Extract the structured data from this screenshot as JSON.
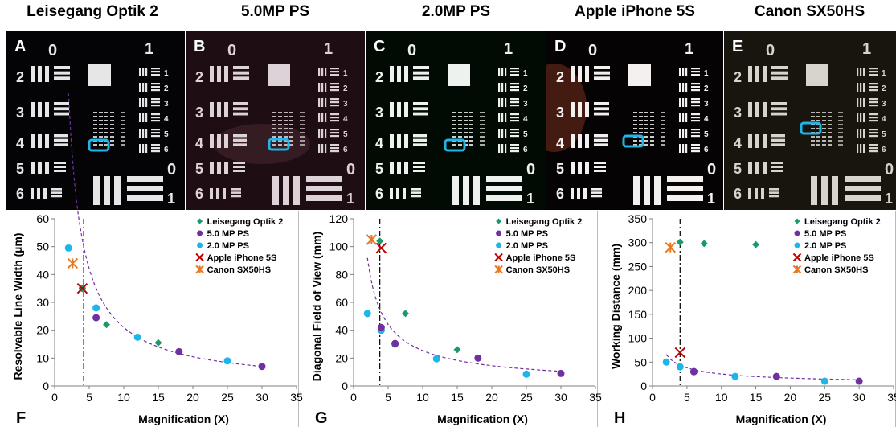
{
  "titles": [
    "Leisegang Optik 2",
    "5.0MP PS",
    "2.0MP PS",
    "Apple iPhone 5S",
    "Canon SX50HS"
  ],
  "photos": [
    {
      "letter": "A",
      "bg": "#040406",
      "bar": "#e6e6e6"
    },
    {
      "letter": "B",
      "bg": "#1e0e14",
      "bar": "#dcd2d8"
    },
    {
      "letter": "C",
      "bg": "#020a04",
      "bar": "#eef2ee"
    },
    {
      "letter": "D",
      "bg": "#060304",
      "bar": "#f4f0f0"
    },
    {
      "letter": "E",
      "bg": "#18140e",
      "bar": "#d8d4cc"
    }
  ],
  "target_labels": {
    "group0": "0",
    "group1": "1",
    "group0b": "0",
    "group1b": "1",
    "left": [
      "2",
      "3",
      "4",
      "5",
      "6"
    ],
    "right": [
      "1",
      "2",
      "3",
      "4",
      "5",
      "6"
    ]
  },
  "colors": {
    "Leisegang Optik 2": "#1a9a66",
    "5.0 MP PS": "#7030a0",
    "2.0 MP PS": "#1fb4ea",
    "Apple iPhone 5S": "#c00000",
    "Canon SX50HS": "#e87722",
    "highlight": "#1fb4ea",
    "fit": "#7030a0"
  },
  "chart_data": [
    {
      "panel": "F",
      "type": "scatter",
      "xlabel": "Magnification (X)",
      "ylabel": "Resolvable Line Width (µm)",
      "xlim": [
        0,
        35
      ],
      "ylim": [
        0,
        60
      ],
      "xticks": [
        0,
        5,
        10,
        15,
        20,
        25,
        30,
        35
      ],
      "yticks": [
        0,
        10,
        20,
        30,
        40,
        50,
        60
      ],
      "vline_x": 4.2,
      "fit": {
        "type": "power",
        "a": 210,
        "b": -1.0,
        "xrange": [
          2,
          30
        ]
      },
      "legend_position": "top-right",
      "series": [
        {
          "name": "Leisegang Optik 2",
          "marker": "diamond",
          "x": [
            4,
            7.5,
            15
          ],
          "y": [
            35,
            22,
            15.5
          ]
        },
        {
          "name": "5.0 MP PS",
          "marker": "circle",
          "x": [
            6,
            18,
            30
          ],
          "y": [
            24.5,
            12.3,
            7
          ]
        },
        {
          "name": "2.0 MP PS",
          "marker": "circle",
          "x": [
            2,
            4,
            6,
            12,
            25
          ],
          "y": [
            49.5,
            35,
            28,
            17.5,
            9
          ]
        },
        {
          "name": "Apple iPhone 5S",
          "marker": "x",
          "x": [
            4
          ],
          "y": [
            35
          ]
        },
        {
          "name": "Canon SX50HS",
          "marker": "star",
          "x": [
            2.6
          ],
          "y": [
            44
          ]
        }
      ]
    },
    {
      "panel": "G",
      "type": "scatter",
      "xlabel": "Magnification (X)",
      "ylabel": "Diagonal Field of View (mm)",
      "xlim": [
        0,
        35
      ],
      "ylim": [
        0,
        120
      ],
      "xticks": [
        0,
        5,
        10,
        15,
        20,
        25,
        30,
        35
      ],
      "yticks": [
        0,
        20,
        40,
        60,
        80,
        100,
        120
      ],
      "vline_x": 3.8,
      "fit": {
        "type": "power",
        "a": 160,
        "b": -0.8,
        "xrange": [
          2,
          30
        ]
      },
      "legend_position": "top-right",
      "series": [
        {
          "name": "Leisegang Optik 2",
          "marker": "diamond",
          "x": [
            3.8,
            7.5,
            15
          ],
          "y": [
            104,
            52,
            26
          ]
        },
        {
          "name": "5.0 MP PS",
          "marker": "circle",
          "x": [
            4,
            6,
            18,
            30
          ],
          "y": [
            42,
            30.5,
            20,
            9
          ]
        },
        {
          "name": "2.0 MP PS",
          "marker": "circle",
          "x": [
            2,
            4,
            6,
            12,
            25
          ],
          "y": [
            52,
            40,
            30,
            19.5,
            8.5
          ]
        },
        {
          "name": "Apple iPhone 5S",
          "marker": "x",
          "x": [
            4
          ],
          "y": [
            99
          ]
        },
        {
          "name": "Canon SX50HS",
          "marker": "star",
          "x": [
            2.6
          ],
          "y": [
            105
          ]
        }
      ]
    },
    {
      "panel": "H",
      "type": "scatter",
      "xlabel": "Magnification (X)",
      "ylabel": "Working Distance (mm)",
      "xlim": [
        0,
        35
      ],
      "ylim": [
        0,
        350
      ],
      "xticks": [
        0,
        5,
        10,
        15,
        20,
        25,
        30,
        35
      ],
      "yticks": [
        0,
        50,
        100,
        150,
        200,
        250,
        300,
        350
      ],
      "vline_x": 4,
      "fit": {
        "type": "power",
        "a": 100,
        "b": -0.6,
        "xrange": [
          2,
          30
        ]
      },
      "legend_position": "top-right",
      "series": [
        {
          "name": "Leisegang Optik 2",
          "marker": "diamond",
          "x": [
            4,
            7.5,
            15
          ],
          "y": [
            301,
            298,
            296
          ]
        },
        {
          "name": "5.0 MP PS",
          "marker": "circle",
          "x": [
            6,
            18,
            30
          ],
          "y": [
            30,
            20,
            10
          ]
        },
        {
          "name": "2.0 MP PS",
          "marker": "circle",
          "x": [
            2,
            4,
            6,
            12,
            25
          ],
          "y": [
            50,
            40,
            30,
            20,
            10
          ]
        },
        {
          "name": "Apple iPhone 5S",
          "marker": "x",
          "x": [
            4
          ],
          "y": [
            70
          ]
        },
        {
          "name": "Canon SX50HS",
          "marker": "star",
          "x": [
            2.6
          ],
          "y": [
            290
          ]
        }
      ]
    }
  ],
  "legend_labels": [
    "Leisegang Optik 2",
    "5.0 MP PS",
    "2.0 MP PS",
    "Apple iPhone 5S",
    "Canon SX50HS"
  ]
}
